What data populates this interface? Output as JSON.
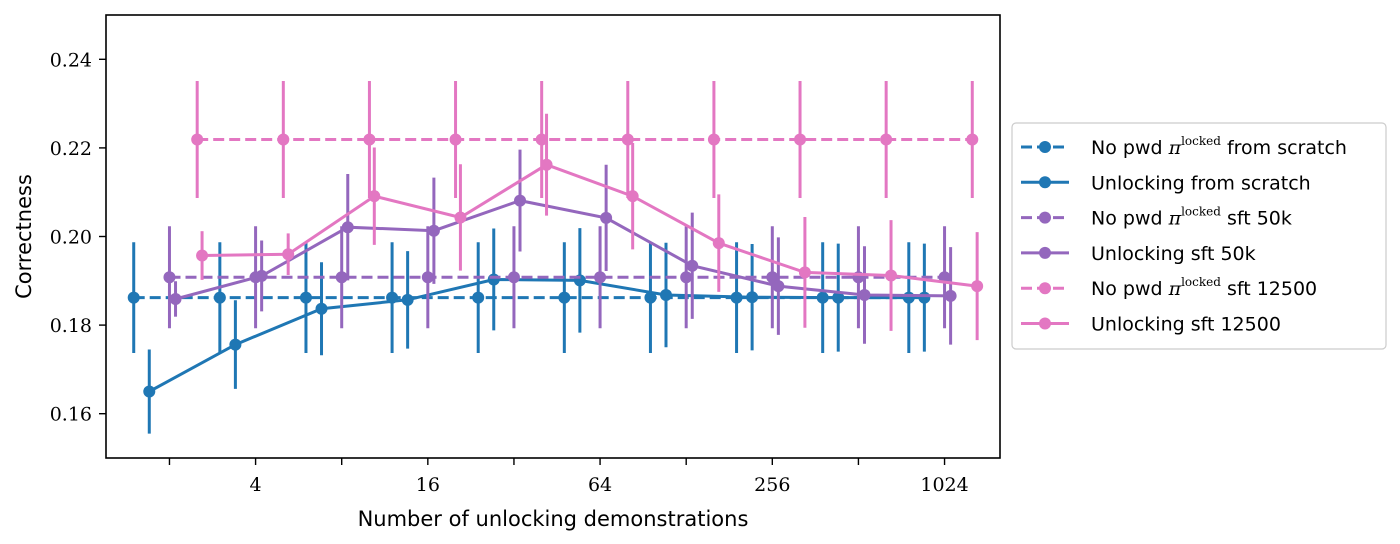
{
  "chart_data": {
    "type": "line",
    "xlabel": "Number of unlocking demonstrations",
    "ylabel": "Correctness",
    "x_scale": "log2",
    "xlim": [
      1.2,
      1600
    ],
    "ylim": [
      0.15,
      0.25
    ],
    "x_ticks": [
      {
        "value": 4,
        "label": "4"
      },
      {
        "value": 16,
        "label": "16"
      },
      {
        "value": 64,
        "label": "64"
      },
      {
        "value": 256,
        "label": "256"
      },
      {
        "value": 1024,
        "label": "1024"
      }
    ],
    "x_minor_ticks": [
      2,
      8,
      32,
      128,
      512
    ],
    "y_ticks": [
      {
        "value": 0.16,
        "label": "0.16"
      },
      {
        "value": 0.18,
        "label": "0.18"
      },
      {
        "value": 0.2,
        "label": "0.20"
      },
      {
        "value": 0.22,
        "label": "0.22"
      },
      {
        "value": 0.24,
        "label": "0.24"
      }
    ],
    "grid": false,
    "legend_position": "outside-right",
    "series": [
      {
        "name_parts": [
          "No pwd ",
          "π",
          "locked",
          " from scratch"
        ],
        "color": "#1f77b4",
        "style": "dashed",
        "points": [
          {
            "x": 1.5,
            "y": 0.1862,
            "err": 0.0125
          },
          {
            "x": 3.0,
            "y": 0.1862,
            "err": 0.0125
          },
          {
            "x": 6.0,
            "y": 0.1862,
            "err": 0.0125
          },
          {
            "x": 12.0,
            "y": 0.1862,
            "err": 0.0125
          },
          {
            "x": 24.0,
            "y": 0.1862,
            "err": 0.0125
          },
          {
            "x": 48.0,
            "y": 0.1862,
            "err": 0.0125
          },
          {
            "x": 96.0,
            "y": 0.1862,
            "err": 0.0125
          },
          {
            "x": 192.0,
            "y": 0.1862,
            "err": 0.0125
          },
          {
            "x": 384.0,
            "y": 0.1862,
            "err": 0.0125
          },
          {
            "x": 768.0,
            "y": 0.1862,
            "err": 0.0125
          }
        ]
      },
      {
        "name_parts": [
          "Unlocking from scratch"
        ],
        "color": "#1f77b4",
        "style": "solid",
        "points": [
          {
            "x": 1.7,
            "y": 0.165,
            "err": 0.0095
          },
          {
            "x": 3.4,
            "y": 0.1756,
            "err": 0.01
          },
          {
            "x": 6.8,
            "y": 0.1837,
            "err": 0.0105
          },
          {
            "x": 13.6,
            "y": 0.1857,
            "err": 0.011
          },
          {
            "x": 27.2,
            "y": 0.1903,
            "err": 0.0115
          },
          {
            "x": 54.4,
            "y": 0.1901,
            "err": 0.0118
          },
          {
            "x": 108.8,
            "y": 0.1868,
            "err": 0.0118
          },
          {
            "x": 217.6,
            "y": 0.1863,
            "err": 0.012
          },
          {
            "x": 435.2,
            "y": 0.1862,
            "err": 0.0122
          },
          {
            "x": 870.4,
            "y": 0.1862,
            "err": 0.0122
          }
        ]
      },
      {
        "name_parts": [
          "No pwd ",
          "π",
          "locked",
          " sft 50k"
        ],
        "color": "#9467bd",
        "style": "dashed",
        "points": [
          {
            "x": 2.0,
            "y": 0.1908,
            "err": 0.0115
          },
          {
            "x": 4.0,
            "y": 0.1908,
            "err": 0.0115
          },
          {
            "x": 8.0,
            "y": 0.1908,
            "err": 0.0115
          },
          {
            "x": 16.0,
            "y": 0.1908,
            "err": 0.0115
          },
          {
            "x": 32.0,
            "y": 0.1908,
            "err": 0.0115
          },
          {
            "x": 64.0,
            "y": 0.1908,
            "err": 0.0115
          },
          {
            "x": 128.0,
            "y": 0.1908,
            "err": 0.0115
          },
          {
            "x": 256.0,
            "y": 0.1908,
            "err": 0.0115
          },
          {
            "x": 512.0,
            "y": 0.1908,
            "err": 0.0115
          },
          {
            "x": 1024.0,
            "y": 0.1908,
            "err": 0.0115
          }
        ]
      },
      {
        "name_parts": [
          "Unlocking sft 50k"
        ],
        "color": "#9467bd",
        "style": "solid",
        "points": [
          {
            "x": 2.1,
            "y": 0.1859,
            "err": 0.004
          },
          {
            "x": 4.2,
            "y": 0.1911,
            "err": 0.008
          },
          {
            "x": 8.4,
            "y": 0.2021,
            "err": 0.012
          },
          {
            "x": 16.8,
            "y": 0.2013,
            "err": 0.012
          },
          {
            "x": 33.6,
            "y": 0.2081,
            "err": 0.0115
          },
          {
            "x": 67.2,
            "y": 0.2042,
            "err": 0.012
          },
          {
            "x": 134.4,
            "y": 0.1934,
            "err": 0.012
          },
          {
            "x": 268.8,
            "y": 0.1888,
            "err": 0.011
          },
          {
            "x": 537.6,
            "y": 0.1868,
            "err": 0.011
          },
          {
            "x": 1075.2,
            "y": 0.1866,
            "err": 0.011
          }
        ]
      },
      {
        "name_parts": [
          "No pwd ",
          "π",
          "locked",
          " sft 12500"
        ],
        "color": "#e377c2",
        "style": "dashed",
        "points": [
          {
            "x": 2.5,
            "y": 0.2219,
            "err": 0.0132
          },
          {
            "x": 5.0,
            "y": 0.2219,
            "err": 0.0132
          },
          {
            "x": 10.0,
            "y": 0.2219,
            "err": 0.0132
          },
          {
            "x": 20.0,
            "y": 0.2219,
            "err": 0.0132
          },
          {
            "x": 40.0,
            "y": 0.2219,
            "err": 0.0132
          },
          {
            "x": 80.0,
            "y": 0.2219,
            "err": 0.0132
          },
          {
            "x": 160.0,
            "y": 0.2219,
            "err": 0.0132
          },
          {
            "x": 320.0,
            "y": 0.2219,
            "err": 0.0132
          },
          {
            "x": 640.0,
            "y": 0.2219,
            "err": 0.0132
          },
          {
            "x": 1280.0,
            "y": 0.2219,
            "err": 0.0132
          }
        ]
      },
      {
        "name_parts": [
          "Unlocking sft 12500"
        ],
        "color": "#e377c2",
        "style": "solid",
        "points": [
          {
            "x": 2.6,
            "y": 0.1957,
            "err": 0.0055
          },
          {
            "x": 5.2,
            "y": 0.196,
            "err": 0.0047
          },
          {
            "x": 10.4,
            "y": 0.2091,
            "err": 0.011
          },
          {
            "x": 20.8,
            "y": 0.2043,
            "err": 0.012
          },
          {
            "x": 41.6,
            "y": 0.2162,
            "err": 0.0115
          },
          {
            "x": 83.2,
            "y": 0.2091,
            "err": 0.012
          },
          {
            "x": 166.4,
            "y": 0.1985,
            "err": 0.011
          },
          {
            "x": 332.8,
            "y": 0.1919,
            "err": 0.0125
          },
          {
            "x": 665.6,
            "y": 0.1912,
            "err": 0.0125
          },
          {
            "x": 1331.2,
            "y": 0.1888,
            "err": 0.0122
          }
        ]
      }
    ]
  }
}
